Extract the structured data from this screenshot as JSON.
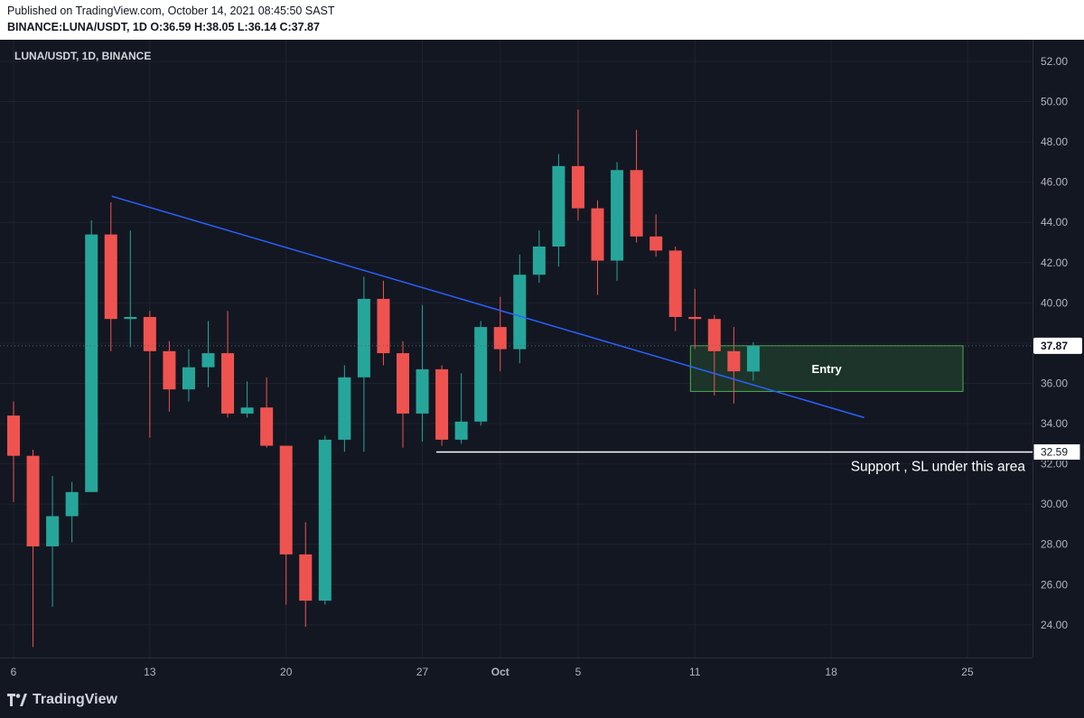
{
  "header": {
    "published": "Published on TradingView.com, October 14, 2021 08:45:50 SAST",
    "ohlc": "BINANCE:LUNA/USDT, 1D O:36.59 H:38.05 L:36.14 C:37.87"
  },
  "chart_data": {
    "type": "candlestick",
    "title": "LUNA/USDT, 1D, BINANCE",
    "ylim": [
      22.5,
      53
    ],
    "y_ticks": [
      "52.00",
      "50.00",
      "48.00",
      "46.00",
      "44.00",
      "42.00",
      "40.00",
      "38.00",
      "36.00",
      "34.00",
      "32.00",
      "30.00",
      "28.00",
      "26.00",
      "24.00"
    ],
    "x_ticks": [
      {
        "label": "6",
        "day": 0
      },
      {
        "label": "13",
        "day": 7
      },
      {
        "label": "20",
        "day": 14
      },
      {
        "label": "27",
        "day": 21
      },
      {
        "label": "Oct",
        "day": 25
      },
      {
        "label": "5",
        "day": 29
      },
      {
        "label": "11",
        "day": 35
      },
      {
        "label": "18",
        "day": 42
      },
      {
        "label": "25",
        "day": 49
      }
    ],
    "candles": [
      {
        "day": 0,
        "o": 34.4,
        "h": 35.1,
        "l": 30.1,
        "c": 32.4
      },
      {
        "day": 1,
        "o": 32.4,
        "h": 32.7,
        "l": 22.9,
        "c": 27.9
      },
      {
        "day": 2,
        "o": 27.9,
        "h": 31.4,
        "l": 24.9,
        "c": 29.4
      },
      {
        "day": 3,
        "o": 29.4,
        "h": 31.1,
        "l": 28.1,
        "c": 30.6
      },
      {
        "day": 4,
        "o": 30.6,
        "h": 44.1,
        "l": 30.6,
        "c": 43.4
      },
      {
        "day": 5,
        "o": 43.4,
        "h": 45.0,
        "l": 37.6,
        "c": 39.2
      },
      {
        "day": 6,
        "o": 39.2,
        "h": 43.6,
        "l": 37.8,
        "c": 39.3
      },
      {
        "day": 7,
        "o": 39.3,
        "h": 39.6,
        "l": 33.3,
        "c": 37.6
      },
      {
        "day": 8,
        "o": 37.6,
        "h": 38.1,
        "l": 34.6,
        "c": 35.7
      },
      {
        "day": 9,
        "o": 35.7,
        "h": 37.7,
        "l": 35.1,
        "c": 36.8
      },
      {
        "day": 10,
        "o": 36.8,
        "h": 39.1,
        "l": 35.8,
        "c": 37.5
      },
      {
        "day": 11,
        "o": 37.5,
        "h": 39.6,
        "l": 34.3,
        "c": 34.5
      },
      {
        "day": 12,
        "o": 34.5,
        "h": 36.1,
        "l": 34.3,
        "c": 34.8
      },
      {
        "day": 13,
        "o": 34.8,
        "h": 36.3,
        "l": 32.8,
        "c": 32.9
      },
      {
        "day": 14,
        "o": 32.9,
        "h": 32.9,
        "l": 25.0,
        "c": 27.5
      },
      {
        "day": 15,
        "o": 27.5,
        "h": 29.1,
        "l": 23.9,
        "c": 25.2
      },
      {
        "day": 16,
        "o": 25.2,
        "h": 33.4,
        "l": 25.0,
        "c": 33.2
      },
      {
        "day": 17,
        "o": 33.2,
        "h": 36.9,
        "l": 32.6,
        "c": 36.3
      },
      {
        "day": 18,
        "o": 36.3,
        "h": 41.3,
        "l": 32.6,
        "c": 40.2
      },
      {
        "day": 19,
        "o": 40.2,
        "h": 41.1,
        "l": 36.9,
        "c": 37.5
      },
      {
        "day": 20,
        "o": 37.5,
        "h": 38.1,
        "l": 32.8,
        "c": 34.5
      },
      {
        "day": 21,
        "o": 34.5,
        "h": 39.9,
        "l": 33.1,
        "c": 36.7
      },
      {
        "day": 22,
        "o": 36.7,
        "h": 36.9,
        "l": 32.9,
        "c": 33.2
      },
      {
        "day": 23,
        "o": 33.2,
        "h": 36.5,
        "l": 33.0,
        "c": 34.1
      },
      {
        "day": 24,
        "o": 34.1,
        "h": 39.1,
        "l": 33.9,
        "c": 38.8
      },
      {
        "day": 25,
        "o": 38.8,
        "h": 40.3,
        "l": 36.6,
        "c": 37.7
      },
      {
        "day": 26,
        "o": 37.7,
        "h": 42.4,
        "l": 37.0,
        "c": 41.4
      },
      {
        "day": 27,
        "o": 41.4,
        "h": 43.6,
        "l": 41.0,
        "c": 42.8
      },
      {
        "day": 28,
        "o": 42.8,
        "h": 47.4,
        "l": 41.8,
        "c": 46.8
      },
      {
        "day": 29,
        "o": 46.8,
        "h": 49.6,
        "l": 44.1,
        "c": 44.7
      },
      {
        "day": 30,
        "o": 44.7,
        "h": 45.1,
        "l": 40.4,
        "c": 42.1
      },
      {
        "day": 31,
        "o": 42.1,
        "h": 47.0,
        "l": 41.1,
        "c": 46.6
      },
      {
        "day": 32,
        "o": 46.6,
        "h": 48.6,
        "l": 43.0,
        "c": 43.3
      },
      {
        "day": 33,
        "o": 43.3,
        "h": 44.4,
        "l": 42.3,
        "c": 42.6
      },
      {
        "day": 34,
        "o": 42.6,
        "h": 42.8,
        "l": 38.6,
        "c": 39.3
      },
      {
        "day": 35,
        "o": 39.3,
        "h": 40.7,
        "l": 37.7,
        "c": 39.2
      },
      {
        "day": 36,
        "o": 39.2,
        "h": 39.4,
        "l": 35.4,
        "c": 37.6
      },
      {
        "day": 37,
        "o": 37.6,
        "h": 38.8,
        "l": 35.0,
        "c": 36.6
      },
      {
        "day": 38,
        "o": 36.59,
        "h": 38.05,
        "l": 36.14,
        "c": 37.87
      }
    ],
    "trendline": {
      "from": {
        "day": 5,
        "price": 45.3
      },
      "to": {
        "day": 43,
        "price": 34.3
      }
    },
    "support": {
      "price": 32.59,
      "label": "32.59",
      "from_day": 22,
      "annotation": "Support , SL under this area"
    },
    "current_price": {
      "price": 37.87,
      "label": "37.87"
    },
    "entry_zone": {
      "from_day": 35.05,
      "to_day": 49.05,
      "top": 37.87,
      "bottom": 35.6,
      "label": "Entry"
    },
    "colors": {
      "up": "#26a69a",
      "down": "#ef5350",
      "background": "#131722",
      "trendline": "#2962ff",
      "support": "#ffffff",
      "entry_fill": "#1e3a2a",
      "entry_border": "#4caf50",
      "axis_text": "#b2b5be"
    }
  },
  "footer": {
    "logo": "TradingView"
  }
}
